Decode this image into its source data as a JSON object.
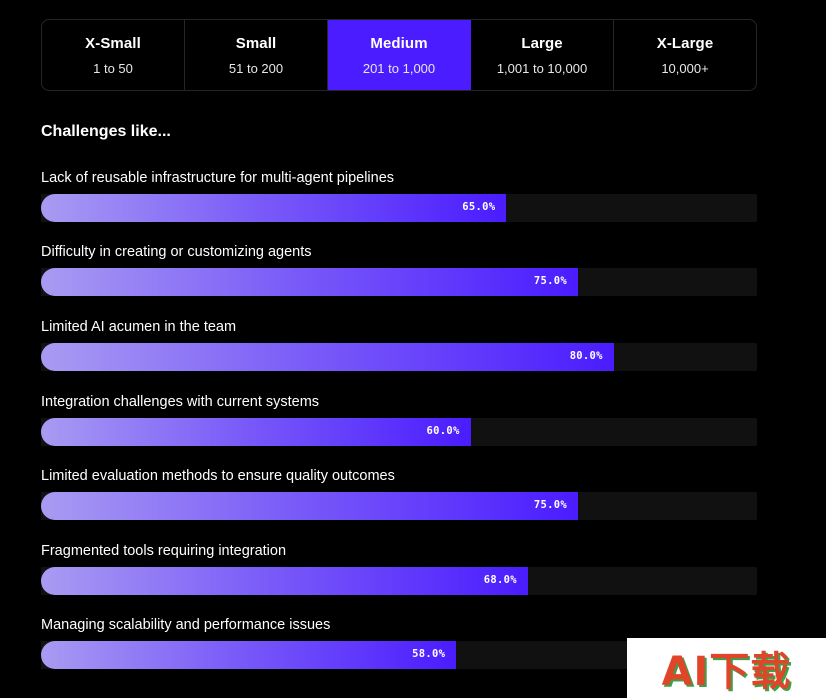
{
  "tabs": [
    {
      "title": "X-Small",
      "range": "1 to 50",
      "active": false
    },
    {
      "title": "Small",
      "range": "51 to 200",
      "active": false
    },
    {
      "title": "Medium",
      "range": "201 to 1,000",
      "active": true
    },
    {
      "title": "Large",
      "range": "1,001 to 10,000",
      "active": false
    },
    {
      "title": "X-Large",
      "range": "10,000+",
      "active": false
    }
  ],
  "section": {
    "title": "Challenges like..."
  },
  "challenges": [
    {
      "label": "Lack of reusable infrastructure for multi-agent pipelines",
      "percent": 65.0,
      "value_label": "65.0%"
    },
    {
      "label": "Difficulty in creating or customizing agents",
      "percent": 75.0,
      "value_label": "75.0%"
    },
    {
      "label": "Limited AI acumen in the team",
      "percent": 80.0,
      "value_label": "80.0%"
    },
    {
      "label": "Integration challenges with current systems",
      "percent": 60.0,
      "value_label": "60.0%"
    },
    {
      "label": "Limited evaluation methods to ensure quality outcomes",
      "percent": 75.0,
      "value_label": "75.0%"
    },
    {
      "label": "Fragmented tools requiring integration",
      "percent": 68.0,
      "value_label": "68.0%"
    },
    {
      "label": "Managing scalability and performance issues",
      "percent": 58.0,
      "value_label": "58.0%"
    }
  ],
  "watermark": {
    "text": "AI下载"
  },
  "colors": {
    "accent": "#4a1cff",
    "gradient_start": "#a99bf2",
    "track": "#111111",
    "background": "#000000"
  }
}
